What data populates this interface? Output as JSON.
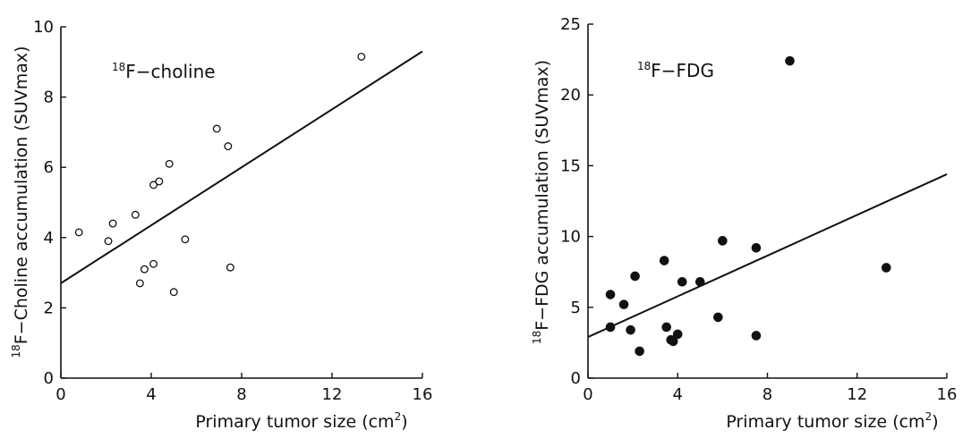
{
  "chart_data": [
    {
      "type": "scatter",
      "label_sup": "18",
      "label_text": "F−choline",
      "xlabel_text": "Primary tumor size (cm",
      "xlabel_sup": "2",
      "xlabel_close": ")",
      "ylabel_sup": "18",
      "ylabel_text": "F−Choline accumulation (SUVmax)",
      "xlim": [
        0,
        16
      ],
      "ylim": [
        0,
        10
      ],
      "xticks": [
        0,
        4,
        8,
        12,
        16
      ],
      "yticks": [
        0,
        2,
        4,
        6,
        8,
        10
      ],
      "marker": "open-circle",
      "grid": false,
      "points": [
        [
          0.8,
          4.15
        ],
        [
          2.1,
          3.9
        ],
        [
          2.3,
          4.4
        ],
        [
          3.3,
          4.65
        ],
        [
          3.5,
          2.7
        ],
        [
          3.7,
          3.1
        ],
        [
          4.1,
          5.5
        ],
        [
          4.1,
          3.25
        ],
        [
          4.35,
          5.6
        ],
        [
          4.8,
          6.1
        ],
        [
          5.0,
          2.45
        ],
        [
          5.5,
          3.95
        ],
        [
          6.9,
          7.1
        ],
        [
          7.4,
          6.6
        ],
        [
          7.5,
          3.15
        ],
        [
          13.3,
          9.15
        ]
      ],
      "regression": [
        [
          0,
          2.7
        ],
        [
          16,
          9.3
        ]
      ]
    },
    {
      "type": "scatter",
      "label_sup": "18",
      "label_text": "F−FDG",
      "xlabel_text": "Primary tumor size (cm",
      "xlabel_sup": "2",
      "xlabel_close": ")",
      "ylabel_sup": "18",
      "ylabel_text": "F−FDG accumulation (SUVmax)",
      "xlim": [
        0,
        16
      ],
      "ylim": [
        0,
        25
      ],
      "xticks": [
        0,
        4,
        8,
        12,
        16
      ],
      "yticks": [
        0,
        5,
        10,
        15,
        20,
        25
      ],
      "marker": "filled-circle",
      "grid": false,
      "points": [
        [
          1.0,
          5.9
        ],
        [
          1.0,
          3.6
        ],
        [
          1.6,
          5.2
        ],
        [
          1.9,
          3.4
        ],
        [
          2.1,
          7.2
        ],
        [
          2.3,
          1.9
        ],
        [
          3.4,
          8.3
        ],
        [
          3.5,
          3.6
        ],
        [
          3.7,
          2.7
        ],
        [
          3.8,
          2.6
        ],
        [
          4.0,
          3.1
        ],
        [
          4.2,
          6.8
        ],
        [
          5.0,
          6.8
        ],
        [
          5.8,
          4.3
        ],
        [
          6.0,
          9.7
        ],
        [
          7.5,
          9.2
        ],
        [
          7.5,
          3.0
        ],
        [
          9.0,
          22.4
        ],
        [
          13.3,
          7.8
        ]
      ],
      "regression": [
        [
          0,
          2.9
        ],
        [
          16,
          14.4
        ]
      ]
    }
  ]
}
